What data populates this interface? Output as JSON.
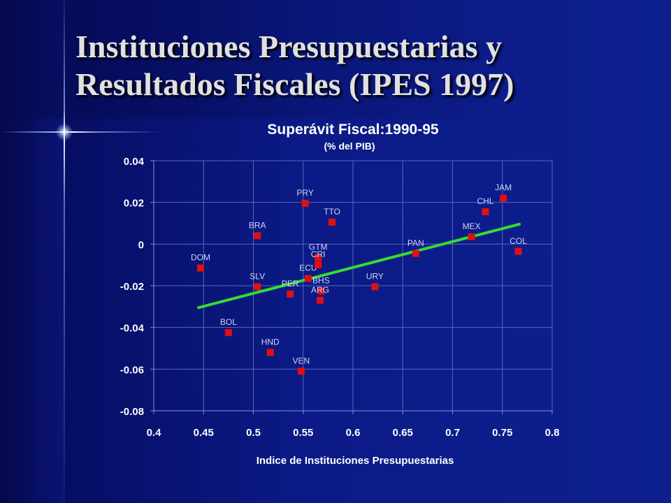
{
  "slide": {
    "title_line1": "Instituciones Presupuestarias y",
    "title_line2": "Resultados Fiscales (IPES 1997)"
  },
  "chart_data": {
    "type": "scatter",
    "title": "Superávit Fiscal:1990-95",
    "subtitle": "(% del PIB)",
    "xlabel": "Indice de Instituciones Presupuestarias",
    "ylabel": "",
    "xlim": [
      0.4,
      0.8
    ],
    "ylim": [
      -0.08,
      0.04
    ],
    "xticks": [
      "0.4",
      "0.45",
      "0.5",
      "0.55",
      "0.6",
      "0.65",
      "0.7",
      "0.75",
      "0.8"
    ],
    "yticks": [
      "0.04",
      "0.02",
      "0",
      "-0.02",
      "-0.04",
      "-0.06",
      "-0.08"
    ],
    "grid": true,
    "points": [
      {
        "label": "DOM",
        "x": 0.447,
        "y": -0.0115
      },
      {
        "label": "BOL",
        "x": 0.475,
        "y": -0.0425
      },
      {
        "label": "BRA",
        "x": 0.504,
        "y": 0.004
      },
      {
        "label": "SLV",
        "x": 0.504,
        "y": -0.0205
      },
      {
        "label": "HND",
        "x": 0.517,
        "y": -0.052
      },
      {
        "label": "PER",
        "x": 0.537,
        "y": -0.024
      },
      {
        "label": "VEN",
        "x": 0.548,
        "y": -0.061
      },
      {
        "label": "PRY",
        "x": 0.552,
        "y": 0.0195
      },
      {
        "label": "ECU",
        "x": 0.555,
        "y": -0.0165
      },
      {
        "label": "GTM",
        "x": 0.565,
        "y": -0.0065
      },
      {
        "label": "CRI",
        "x": 0.565,
        "y": -0.01
      },
      {
        "label": "BHS",
        "x": 0.568,
        "y": -0.0225
      },
      {
        "label": "ARG",
        "x": 0.567,
        "y": -0.027
      },
      {
        "label": "TTO",
        "x": 0.579,
        "y": 0.0105
      },
      {
        "label": "URY",
        "x": 0.622,
        "y": -0.0205
      },
      {
        "label": "PAN",
        "x": 0.663,
        "y": -0.0045
      },
      {
        "label": "MEX",
        "x": 0.719,
        "y": 0.0035
      },
      {
        "label": "CHL",
        "x": 0.733,
        "y": 0.0155
      },
      {
        "label": "JAM",
        "x": 0.751,
        "y": 0.022
      },
      {
        "label": "COL",
        "x": 0.766,
        "y": -0.0035
      }
    ],
    "trendline": {
      "x": [
        0.445,
        0.767
      ],
      "y": [
        -0.0305,
        0.0095
      ]
    },
    "colors": {
      "marker": "#e01010",
      "trendline": "#33dd33",
      "grid": "#5a66b8",
      "text": "#ffffff",
      "point_label": "#cfd6f5"
    }
  }
}
